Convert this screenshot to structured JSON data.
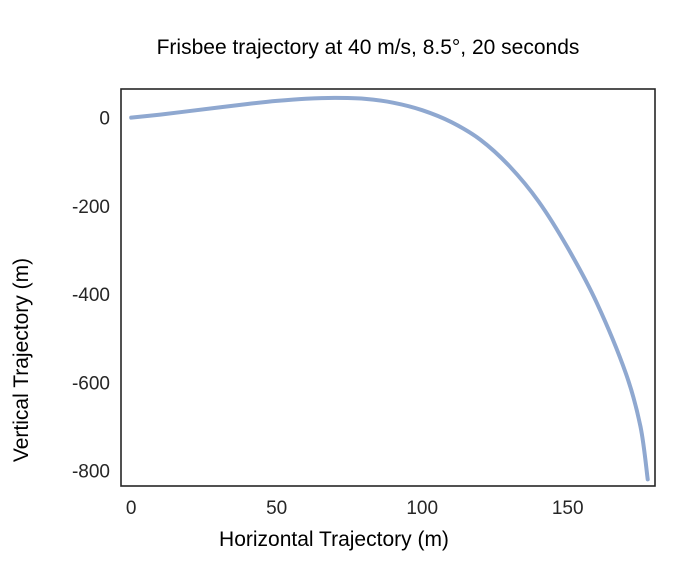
{
  "chart_data": {
    "type": "line",
    "title": "Frisbee trajectory at 40 m/s, 8.5°, 20 seconds",
    "xlabel": "Horizontal Trajectory (m)",
    "ylabel": "Vertical Trajectory (m)",
    "xlim": [
      -3.5,
      180
    ],
    "ylim": [
      -835,
      65
    ],
    "x_ticks": [
      0,
      50,
      100,
      150
    ],
    "y_ticks": [
      0,
      -200,
      -400,
      -600,
      -800
    ],
    "x_tick_labels": [
      "0",
      "50",
      "100",
      "150"
    ],
    "y_tick_labels": [
      "0",
      "-200",
      "-400",
      "-600",
      "-800"
    ],
    "grid": false,
    "legend": "none",
    "series": [
      {
        "color": "#8fa8d0",
        "x": [
          0,
          10,
          20,
          30,
          40,
          50,
          60,
          70,
          80,
          90,
          100,
          110,
          120,
          130,
          140,
          150,
          160,
          170,
          175,
          177.5
        ],
        "y": [
          0,
          7,
          15,
          23,
          31,
          38,
          43,
          45,
          43,
          34,
          17,
          -10,
          -50,
          -110,
          -190,
          -295,
          -420,
          -580,
          -700,
          -820
        ]
      }
    ]
  }
}
